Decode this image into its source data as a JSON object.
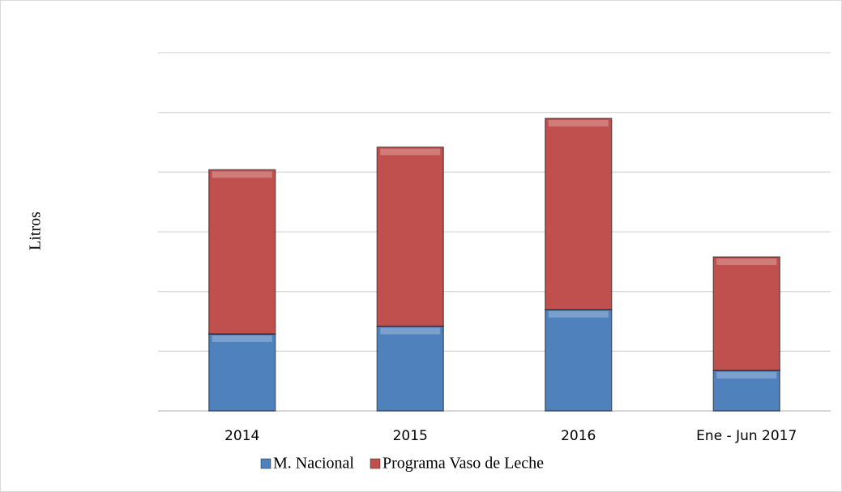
{
  "chart_data": {
    "type": "bar",
    "stacked": true,
    "y_label": "Litros",
    "categories": [
      "2014",
      "2015",
      "2016",
      "Ene - Jun 2017"
    ],
    "series": [
      {
        "name": "M. Nacional",
        "color": "#4f81bd",
        "values": [
          1.29,
          1.42,
          1.7,
          0.68
        ]
      },
      {
        "name": "Programa Vaso de Leche",
        "color": "#c0504d",
        "values": [
          2.75,
          3.0,
          3.2,
          1.9
        ]
      }
    ],
    "ylim": [
      0,
      6
    ],
    "yticks": [
      0,
      1,
      2,
      3,
      4,
      5,
      6
    ],
    "grid": true
  }
}
